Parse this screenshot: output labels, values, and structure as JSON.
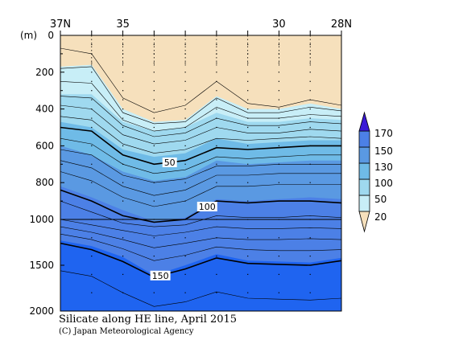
{
  "chart_data": {
    "type": "contour",
    "title": "Silicate along HE line, April 2015",
    "credit": "(C) Japan Meteorological Agency",
    "y_unit": "(m)",
    "x_tick_labels": [
      {
        "lat": 37,
        "label": "37N"
      },
      {
        "lat": 35,
        "label": "35"
      },
      {
        "lat": 30,
        "label": "30"
      },
      {
        "lat": 28,
        "label": "28N"
      }
    ],
    "x_range": [
      37,
      28
    ],
    "y_range": [
      0,
      2000
    ],
    "y_ticks": [
      0,
      200,
      400,
      600,
      800,
      1000,
      1500,
      2000
    ],
    "y_scale_note": "0-1000 m and 1000-2000 m drawn at different scales",
    "station_latitudes": [
      37,
      36,
      35,
      34,
      33,
      32,
      31,
      30,
      29,
      28
    ],
    "contour_labels": [
      50,
      100,
      150
    ],
    "colorbar": {
      "labels": [
        "20",
        "50",
        "100",
        "130",
        "150",
        "170"
      ],
      "colors": [
        "#f6e0bc",
        "#c8eef7",
        "#9fd9ef",
        "#6fbbe7",
        "#5a99e2",
        "#4c80e6",
        "#1f64f0",
        "#3a19d6"
      ]
    },
    "bands": [
      {
        "color": "#f6e0bc",
        "top": [
          0,
          0,
          0,
          0,
          0,
          0,
          0,
          0,
          0,
          0
        ]
      },
      {
        "color": "#c8eef7",
        "top": [
          170,
          160,
          400,
          470,
          460,
          330,
          400,
          400,
          370,
          400
        ]
      },
      {
        "color": "#9fd9ef",
        "top": [
          320,
          320,
          470,
          520,
          500,
          420,
          470,
          470,
          450,
          460
        ]
      },
      {
        "color": "#6fbbe7",
        "top": [
          470,
          500,
          620,
          660,
          640,
          560,
          590,
          580,
          570,
          570
        ]
      },
      {
        "color": "#5a99e2",
        "top": [
          600,
          650,
          740,
          790,
          770,
          680,
          700,
          690,
          680,
          680
        ]
      },
      {
        "color": "#4c80e6",
        "top": [
          820,
          880,
          950,
          1020,
          990,
          890,
          900,
          890,
          880,
          890
        ]
      },
      {
        "color": "#1f64f0",
        "top": [
          1230,
          1290,
          1410,
          1610,
          1500,
          1380,
          1450,
          1460,
          1470,
          1420
        ]
      }
    ],
    "contour_lines": [
      {
        "level": 20,
        "bold": false,
        "depths": [
          70,
          100,
          340,
          420,
          380,
          250,
          370,
          390,
          350,
          380
        ]
      },
      {
        "level": 50,
        "bold": true,
        "depths": [
          500,
          520,
          650,
          700,
          680,
          610,
          620,
          610,
          600,
          600
        ]
      },
      {
        "level": 100,
        "bold": true,
        "depths": [
          840,
          900,
          980,
          1030,
          1000,
          900,
          910,
          900,
          900,
          910
        ]
      },
      {
        "level": 150,
        "bold": true,
        "depths": [
          1260,
          1330,
          1460,
          1630,
          1540,
          1420,
          1480,
          1490,
          1500,
          1450
        ]
      },
      {
        "level": null,
        "bold": false,
        "depths": [
          180,
          170,
          420,
          480,
          470,
          340,
          420,
          420,
          390,
          410
        ]
      },
      {
        "level": null,
        "bold": false,
        "depths": [
          250,
          260,
          460,
          520,
          500,
          390,
          450,
          450,
          430,
          440
        ]
      },
      {
        "level": null,
        "bold": false,
        "depths": [
          330,
          340,
          490,
          550,
          530,
          450,
          490,
          490,
          470,
          480
        ]
      },
      {
        "level": null,
        "bold": false,
        "depths": [
          380,
          400,
          540,
          590,
          570,
          500,
          530,
          530,
          510,
          520
        ]
      },
      {
        "level": null,
        "bold": false,
        "depths": [
          440,
          460,
          590,
          640,
          620,
          560,
          570,
          560,
          550,
          560
        ]
      },
      {
        "level": null,
        "bold": false,
        "depths": [
          560,
          590,
          700,
          750,
          730,
          660,
          670,
          660,
          650,
          650
        ]
      },
      {
        "level": null,
        "bold": false,
        "depths": [
          620,
          650,
          760,
          800,
          780,
          710,
          710,
          700,
          700,
          700
        ]
      },
      {
        "level": null,
        "bold": false,
        "depths": [
          680,
          720,
          820,
          870,
          840,
          760,
          760,
          750,
          750,
          750
        ]
      },
      {
        "level": null,
        "bold": false,
        "depths": [
          740,
          790,
          880,
          930,
          900,
          820,
          820,
          810,
          810,
          810
        ]
      },
      {
        "level": null,
        "bold": false,
        "depths": [
          900,
          960,
          1040,
          1080,
          1060,
          980,
          990,
          990,
          980,
          990
        ]
      },
      {
        "level": null,
        "bold": false,
        "depths": [
          1000,
          1060,
          1120,
          1180,
          1140,
          1080,
          1100,
          1100,
          1090,
          1100
        ]
      },
      {
        "level": null,
        "bold": false,
        "depths": [
          1080,
          1140,
          1220,
          1310,
          1260,
          1200,
          1220,
          1220,
          1210,
          1220
        ]
      },
      {
        "level": null,
        "bold": false,
        "depths": [
          1160,
          1220,
          1320,
          1450,
          1390,
          1300,
          1330,
          1340,
          1340,
          1330
        ]
      },
      {
        "level": null,
        "bold": false,
        "depths": [
          1560,
          1620,
          1800,
          1950,
          1900,
          1790,
          1860,
          1870,
          1880,
          1860
        ]
      }
    ]
  }
}
